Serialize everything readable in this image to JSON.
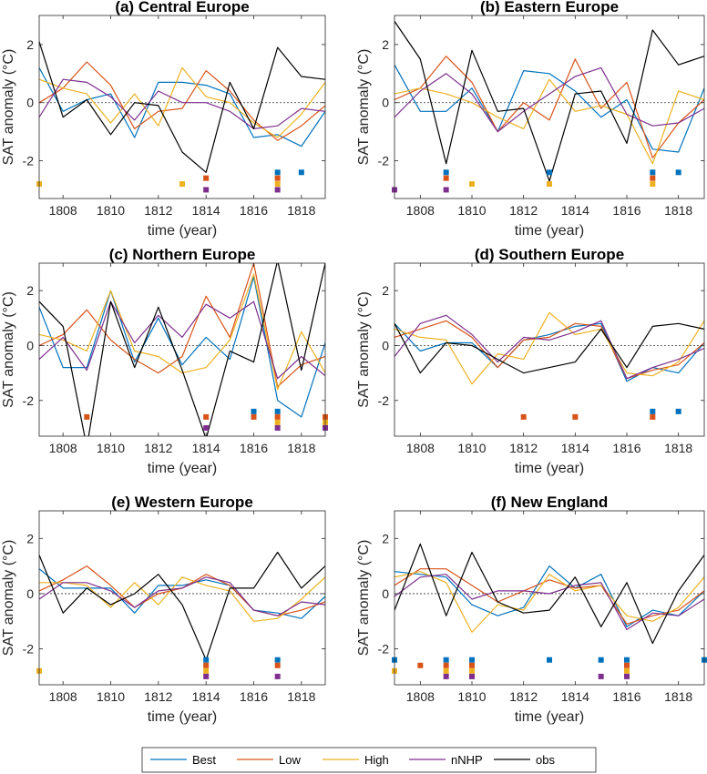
{
  "colors": {
    "Best": "#0072BD",
    "Low": "#D95319",
    "High": "#EDB120",
    "nNHP": "#7E2F8E",
    "obs": "#000000"
  },
  "legend": [
    "Best",
    "Low",
    "High",
    "nNHP",
    "obs"
  ],
  "chart_data": [
    {
      "type": "line",
      "title": "(a) Central Europe",
      "xlabel": "time (year)",
      "ylabel": "SAT anomaly (°C)",
      "xlim": [
        1807,
        1819
      ],
      "ylim": [
        -3.3,
        3
      ],
      "xticks": [
        1808,
        1810,
        1812,
        1814,
        1816,
        1818
      ],
      "yticks": [
        -2,
        0,
        2
      ],
      "x": [
        1807,
        1808,
        1809,
        1810,
        1811,
        1812,
        1813,
        1814,
        1815,
        1816,
        1817,
        1818,
        1819
      ],
      "series": [
        {
          "name": "Best",
          "values": [
            1.2,
            -0.3,
            0.1,
            0.3,
            -1.2,
            0.7,
            0.7,
            0.6,
            0.3,
            -1.2,
            -1.1,
            -1.5,
            -0.3
          ]
        },
        {
          "name": "Low",
          "values": [
            0,
            0.5,
            1.4,
            0.6,
            -0.9,
            -0.3,
            -0.2,
            1.1,
            0.4,
            -0.6,
            -1.3,
            -0.8,
            -0.1
          ]
        },
        {
          "name": "High",
          "values": [
            0.8,
            0.5,
            0.3,
            -0.7,
            0.3,
            -0.8,
            1.2,
            0.2,
            0,
            -0.7,
            -1.2,
            -0.4,
            0.7
          ]
        },
        {
          "name": "nNHP",
          "values": [
            -0.5,
            0.8,
            0.7,
            0.2,
            -0.6,
            0.4,
            0,
            0,
            -0.3,
            -0.9,
            -0.8,
            -0.2,
            -0.3
          ]
        },
        {
          "name": "obs",
          "values": [
            2.1,
            -0.5,
            0.1,
            -1.1,
            0,
            -0.1,
            -1.7,
            -2.4,
            0.7,
            -0.9,
            1.9,
            0.9,
            0.8
          ]
        }
      ],
      "markers": [
        {
          "name": "Best",
          "years": [
            1817,
            1818
          ]
        },
        {
          "name": "Low",
          "years": [
            1814,
            1817
          ]
        },
        {
          "name": "High",
          "years": [
            1807,
            1813,
            1817
          ]
        },
        {
          "name": "nNHP",
          "years": [
            1814,
            1817
          ]
        }
      ]
    },
    {
      "type": "line",
      "title": "(b) Eastern Europe",
      "xlabel": "time (year)",
      "ylabel": "SAT anomaly (°C)",
      "xlim": [
        1807,
        1819
      ],
      "ylim": [
        -3.3,
        3
      ],
      "xticks": [
        1808,
        1810,
        1812,
        1814,
        1816,
        1818
      ],
      "yticks": [
        -2,
        0,
        2
      ],
      "x": [
        1807,
        1808,
        1809,
        1810,
        1811,
        1812,
        1813,
        1814,
        1815,
        1816,
        1817,
        1818,
        1819
      ],
      "series": [
        {
          "name": "Best",
          "values": [
            1.3,
            -0.3,
            -0.3,
            0.5,
            -1,
            1.1,
            1,
            0.4,
            -0.5,
            0.1,
            -1.6,
            -1.7,
            0.5
          ]
        },
        {
          "name": "Low",
          "values": [
            0.1,
            0.5,
            1.6,
            0.7,
            -1,
            0,
            -0.6,
            1.5,
            -0.2,
            0.7,
            -1.9,
            -0.7,
            0.1
          ]
        },
        {
          "name": "High",
          "values": [
            0.3,
            0.5,
            0.3,
            0,
            -0.5,
            -0.9,
            0.8,
            -0.3,
            -0.1,
            -0.4,
            -2.1,
            0.4,
            0.1
          ]
        },
        {
          "name": "nNHP",
          "values": [
            -0.5,
            0.4,
            1,
            0.3,
            -1,
            -0.3,
            0.3,
            0.9,
            1.2,
            -0.4,
            -0.8,
            -0.7,
            -0.2
          ]
        },
        {
          "name": "obs",
          "values": [
            2.8,
            1.5,
            -2.1,
            1.8,
            -0.3,
            -0.2,
            -2.7,
            0.3,
            0.4,
            -1.4,
            2.5,
            1.3,
            1.6
          ]
        }
      ],
      "markers": [
        {
          "name": "Best",
          "years": [
            1809,
            1813,
            1817,
            1818
          ]
        },
        {
          "name": "Low",
          "years": [
            1809,
            1817
          ]
        },
        {
          "name": "High",
          "years": [
            1810,
            1813,
            1817
          ]
        },
        {
          "name": "nNHP",
          "years": [
            1807,
            1809
          ]
        }
      ]
    },
    {
      "type": "line",
      "title": "(c) Northern Europe",
      "xlabel": "time (year)",
      "ylabel": "SAT anomaly (°C)",
      "xlim": [
        1807,
        1819
      ],
      "ylim": [
        -3.3,
        3
      ],
      "xticks": [
        1808,
        1810,
        1812,
        1814,
        1816,
        1818
      ],
      "yticks": [
        -2,
        0,
        2
      ],
      "x": [
        1807,
        1808,
        1809,
        1810,
        1811,
        1812,
        1813,
        1814,
        1815,
        1816,
        1817,
        1818,
        1819
      ],
      "series": [
        {
          "name": "Best",
          "values": [
            1.4,
            -0.8,
            -0.8,
            2,
            -0.6,
            1,
            -0.7,
            0.3,
            -0.5,
            2.5,
            -2,
            -2.6,
            0.1
          ]
        },
        {
          "name": "Low",
          "values": [
            0,
            0.4,
            1.3,
            0.2,
            -0.5,
            -1,
            -0.4,
            1.8,
            0.3,
            3,
            -1.5,
            -0.7,
            -0.4
          ]
        },
        {
          "name": "High",
          "values": [
            0.4,
            0.2,
            -0.2,
            2,
            -0.2,
            -0.4,
            -1,
            -0.8,
            0.2,
            2.6,
            -1.6,
            0.5,
            -1
          ]
        },
        {
          "name": "nNHP",
          "values": [
            -0.5,
            0.3,
            -0.9,
            1.6,
            0.1,
            1.1,
            0.3,
            1.5,
            1,
            1.6,
            -1.2,
            -0.4,
            -1.1
          ]
        },
        {
          "name": "obs",
          "values": [
            1.6,
            0.7,
            -3.7,
            1.6,
            -0.8,
            1.4,
            -0.9,
            -3.4,
            -0.2,
            -0.6,
            3.1,
            -0.9,
            3
          ]
        }
      ],
      "markers": [
        {
          "name": "Best",
          "years": [
            1816,
            1817
          ]
        },
        {
          "name": "Low",
          "years": [
            1809,
            1814,
            1816,
            1817,
            1819
          ]
        },
        {
          "name": "High",
          "years": [
            1817,
            1819
          ]
        },
        {
          "name": "nNHP",
          "years": [
            1814,
            1817,
            1819
          ]
        }
      ]
    },
    {
      "type": "line",
      "title": "(d) Southern Europe",
      "xlabel": "time (year)",
      "ylabel": "SAT anomaly (°C)",
      "xlim": [
        1807,
        1819
      ],
      "ylim": [
        -3.3,
        3
      ],
      "xticks": [
        1808,
        1810,
        1812,
        1814,
        1816,
        1818
      ],
      "yticks": [
        -2,
        0,
        2
      ],
      "x": [
        1807,
        1808,
        1809,
        1810,
        1811,
        1812,
        1813,
        1814,
        1815,
        1816,
        1817,
        1818,
        1819
      ],
      "series": [
        {
          "name": "Best",
          "values": [
            0.8,
            -0.2,
            0.1,
            0.1,
            -0.8,
            0.2,
            0.4,
            0.7,
            0.8,
            -1.3,
            -0.8,
            -1,
            0.1
          ]
        },
        {
          "name": "Low",
          "values": [
            0.3,
            0.6,
            0.9,
            0.3,
            -0.8,
            0.2,
            0.3,
            0.8,
            0.7,
            -1.2,
            -0.9,
            -0.7,
            0.1
          ]
        },
        {
          "name": "High",
          "values": [
            0.6,
            0.3,
            0.2,
            -1.4,
            -0.3,
            -0.5,
            1.2,
            0.4,
            0.6,
            -1,
            -1.1,
            -0.6,
            0.9
          ]
        },
        {
          "name": "nNHP",
          "values": [
            -0.4,
            0.8,
            1.1,
            0.4,
            -0.6,
            0.3,
            0.2,
            0.5,
            0.9,
            -1.2,
            -0.8,
            -0.5,
            -0.1
          ]
        },
        {
          "name": "obs",
          "values": [
            0.8,
            -1,
            0.1,
            0,
            -0.5,
            -1,
            -0.8,
            -0.6,
            0.6,
            -0.8,
            0.7,
            0.8,
            0.6
          ]
        }
      ],
      "markers": [
        {
          "name": "Best",
          "years": [
            1817,
            1818
          ]
        },
        {
          "name": "Low",
          "years": [
            1812,
            1814,
            1817
          ]
        }
      ]
    },
    {
      "type": "line",
      "title": "(e) Western Europe",
      "xlabel": "time (year)",
      "ylabel": "SAT anomaly (°C)",
      "xlim": [
        1807,
        1819
      ],
      "ylim": [
        -3.3,
        3
      ],
      "xticks": [
        1808,
        1810,
        1812,
        1814,
        1816,
        1818
      ],
      "yticks": [
        -2,
        0,
        2
      ],
      "x": [
        1807,
        1808,
        1809,
        1810,
        1811,
        1812,
        1813,
        1814,
        1815,
        1816,
        1817,
        1818,
        1819
      ],
      "series": [
        {
          "name": "Best",
          "values": [
            0.9,
            0.2,
            0.2,
            0.2,
            -0.7,
            0.3,
            0.3,
            0.5,
            0.3,
            -0.6,
            -0.7,
            -0.9,
            -0.1
          ]
        },
        {
          "name": "Low",
          "values": [
            0.1,
            0.5,
            1,
            0.3,
            -0.5,
            0,
            0.2,
            0.7,
            0.3,
            -0.6,
            -0.8,
            -0.6,
            -0.3
          ]
        },
        {
          "name": "High",
          "values": [
            0.4,
            0.4,
            0.3,
            -0.5,
            0.4,
            -0.4,
            0.6,
            0.3,
            0.1,
            -1,
            -0.9,
            -0.2,
            0.6
          ]
        },
        {
          "name": "nNHP",
          "values": [
            -0.2,
            0.4,
            0.4,
            0.1,
            -0.5,
            0.1,
            0.2,
            0.6,
            0.4,
            -0.6,
            -0.8,
            -0.3,
            -0.4
          ]
        },
        {
          "name": "obs",
          "values": [
            1.4,
            -0.7,
            0.2,
            -0.4,
            0,
            0.7,
            -0.4,
            -2.4,
            0.2,
            0.2,
            1.5,
            0.2,
            1
          ]
        }
      ],
      "markers": [
        {
          "name": "Best",
          "years": [
            1814,
            1817
          ]
        },
        {
          "name": "Low",
          "years": [
            1814,
            1817
          ]
        },
        {
          "name": "High",
          "years": [
            1807,
            1814
          ]
        },
        {
          "name": "nNHP",
          "years": [
            1814,
            1817
          ]
        }
      ]
    },
    {
      "type": "line",
      "title": "(f) New England",
      "xlabel": "time (year)",
      "ylabel": "SAT anomaly (°C)",
      "xlim": [
        1807,
        1819
      ],
      "ylim": [
        -3.3,
        3
      ],
      "xticks": [
        1808,
        1810,
        1812,
        1814,
        1816,
        1818
      ],
      "yticks": [
        -2,
        0,
        2
      ],
      "x": [
        1807,
        1808,
        1809,
        1810,
        1811,
        1812,
        1813,
        1814,
        1815,
        1816,
        1817,
        1818,
        1819
      ],
      "series": [
        {
          "name": "Best",
          "values": [
            0.8,
            0.7,
            0.6,
            -0.4,
            -0.8,
            -0.5,
            1,
            0.2,
            0.7,
            -1.2,
            -0.6,
            -0.8,
            0.1
          ]
        },
        {
          "name": "Low",
          "values": [
            0.3,
            0.9,
            0.9,
            0.3,
            -0.3,
            0.1,
            0.5,
            0.2,
            0.3,
            -1.1,
            -0.8,
            -0.6,
            0.1
          ]
        },
        {
          "name": "High",
          "values": [
            0.6,
            0.8,
            0.4,
            -1.4,
            -0.4,
            -0.6,
            0.7,
            0.1,
            0.3,
            -0.8,
            -1,
            -0.5,
            0.6
          ]
        },
        {
          "name": "nNHP",
          "values": [
            -0.1,
            0.6,
            0.7,
            -0.2,
            0.1,
            0.1,
            0,
            0.3,
            0.4,
            -1.3,
            -0.7,
            -0.8,
            -0.2
          ]
        },
        {
          "name": "obs",
          "values": [
            -0.6,
            1.8,
            -0.8,
            1.5,
            -0.3,
            -0.7,
            -0.6,
            0.6,
            -1.2,
            0.4,
            -1.8,
            0.1,
            1.4
          ]
        }
      ],
      "markers": [
        {
          "name": "Best",
          "years": [
            1807,
            1809,
            1810,
            1813,
            1815,
            1816,
            1819
          ]
        },
        {
          "name": "Low",
          "years": [
            1808,
            1809,
            1810,
            1816
          ]
        },
        {
          "name": "High",
          "years": [
            1807,
            1809,
            1810,
            1816
          ]
        },
        {
          "name": "nNHP",
          "years": [
            1809,
            1810,
            1815,
            1816
          ]
        }
      ]
    }
  ]
}
